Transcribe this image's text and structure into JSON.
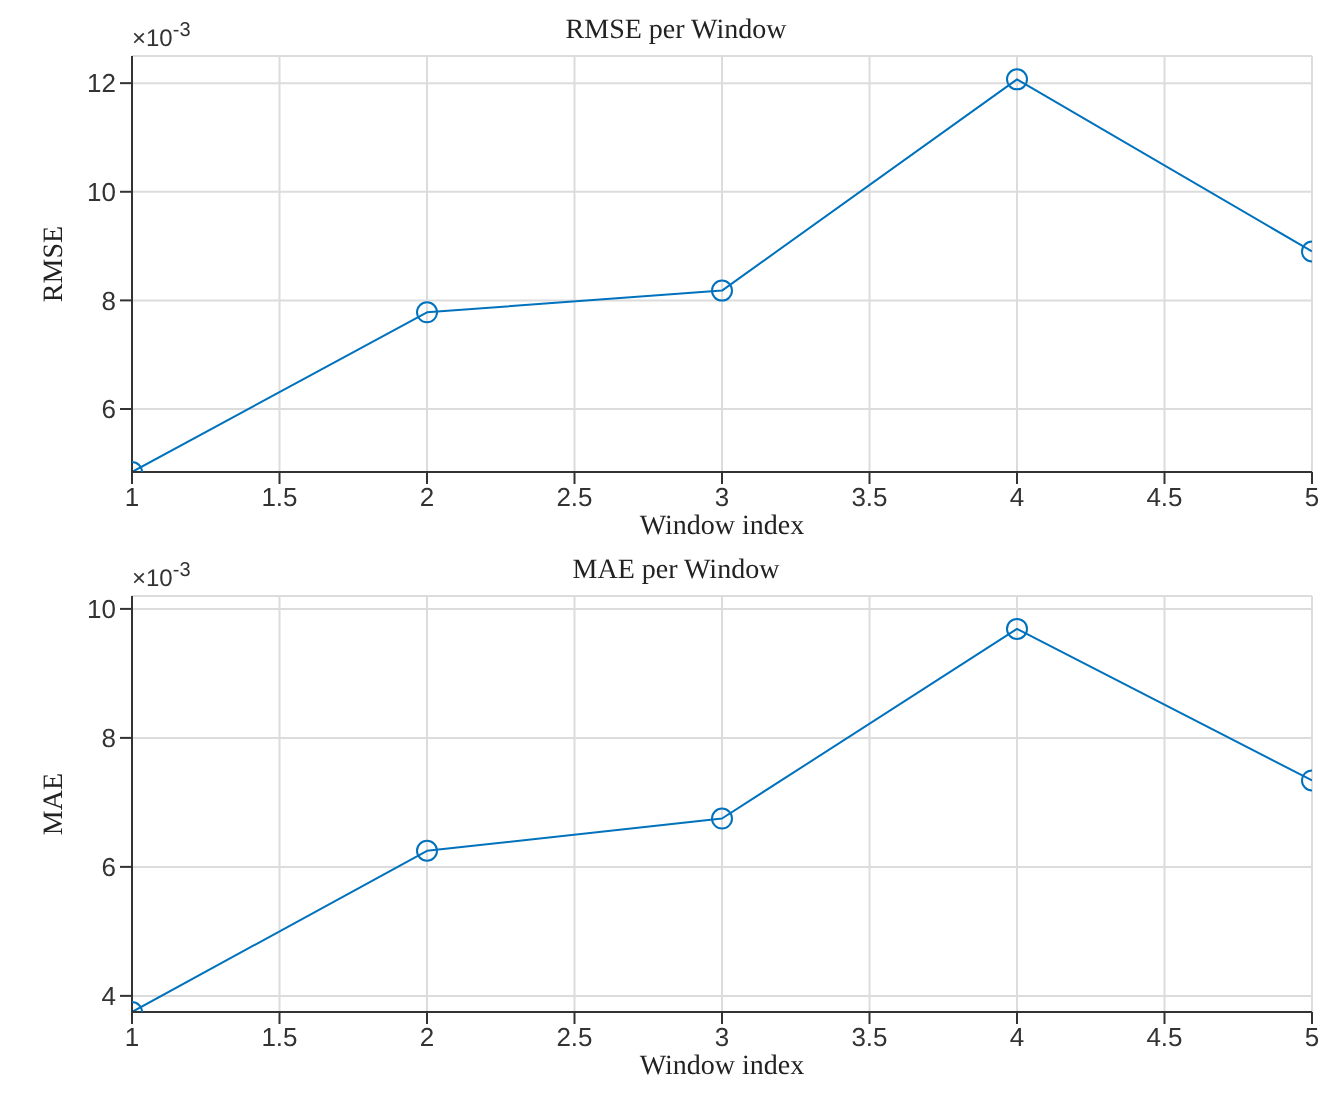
{
  "chart_data": [
    {
      "type": "line",
      "title": "RMSE per Window",
      "xlabel": "Window index",
      "ylabel": "RMSE",
      "annotations": [
        "×10$^{-3}$"
      ],
      "x": [
        1,
        2,
        3,
        4,
        5
      ],
      "series": [
        {
          "color": "#0072bd",
          "values": [
            4.84,
            7.78,
            8.18,
            12.07,
            8.9
          ]
        }
      ],
      "xlim": [
        1,
        5
      ],
      "xticks": [
        1,
        1.5,
        2,
        2.5,
        3,
        3.5,
        4,
        4.5,
        5
      ],
      "ylim": [
        4.84,
        12.5
      ],
      "yticks": [
        6,
        8,
        10,
        12
      ],
      "grid": true,
      "marker": "circle",
      "line_style": "solid"
    },
    {
      "type": "line",
      "title": "MAE per Window",
      "xlabel": "Window index",
      "ylabel": "MAE",
      "annotations": [
        "×10$^{-3}$"
      ],
      "x": [
        1,
        2,
        3,
        4,
        5
      ],
      "series": [
        {
          "color": "#0072bd",
          "values": [
            3.75,
            6.25,
            6.75,
            9.69,
            7.34
          ]
        }
      ],
      "xlim": [
        1,
        5
      ],
      "xticks": [
        1,
        1.5,
        2,
        2.5,
        3,
        3.5,
        4,
        4.5,
        5
      ],
      "ylim": [
        3.75,
        10.2
      ],
      "yticks": [
        4,
        6,
        8,
        10
      ],
      "grid": true,
      "marker": "circle",
      "line_style": "solid"
    }
  ]
}
